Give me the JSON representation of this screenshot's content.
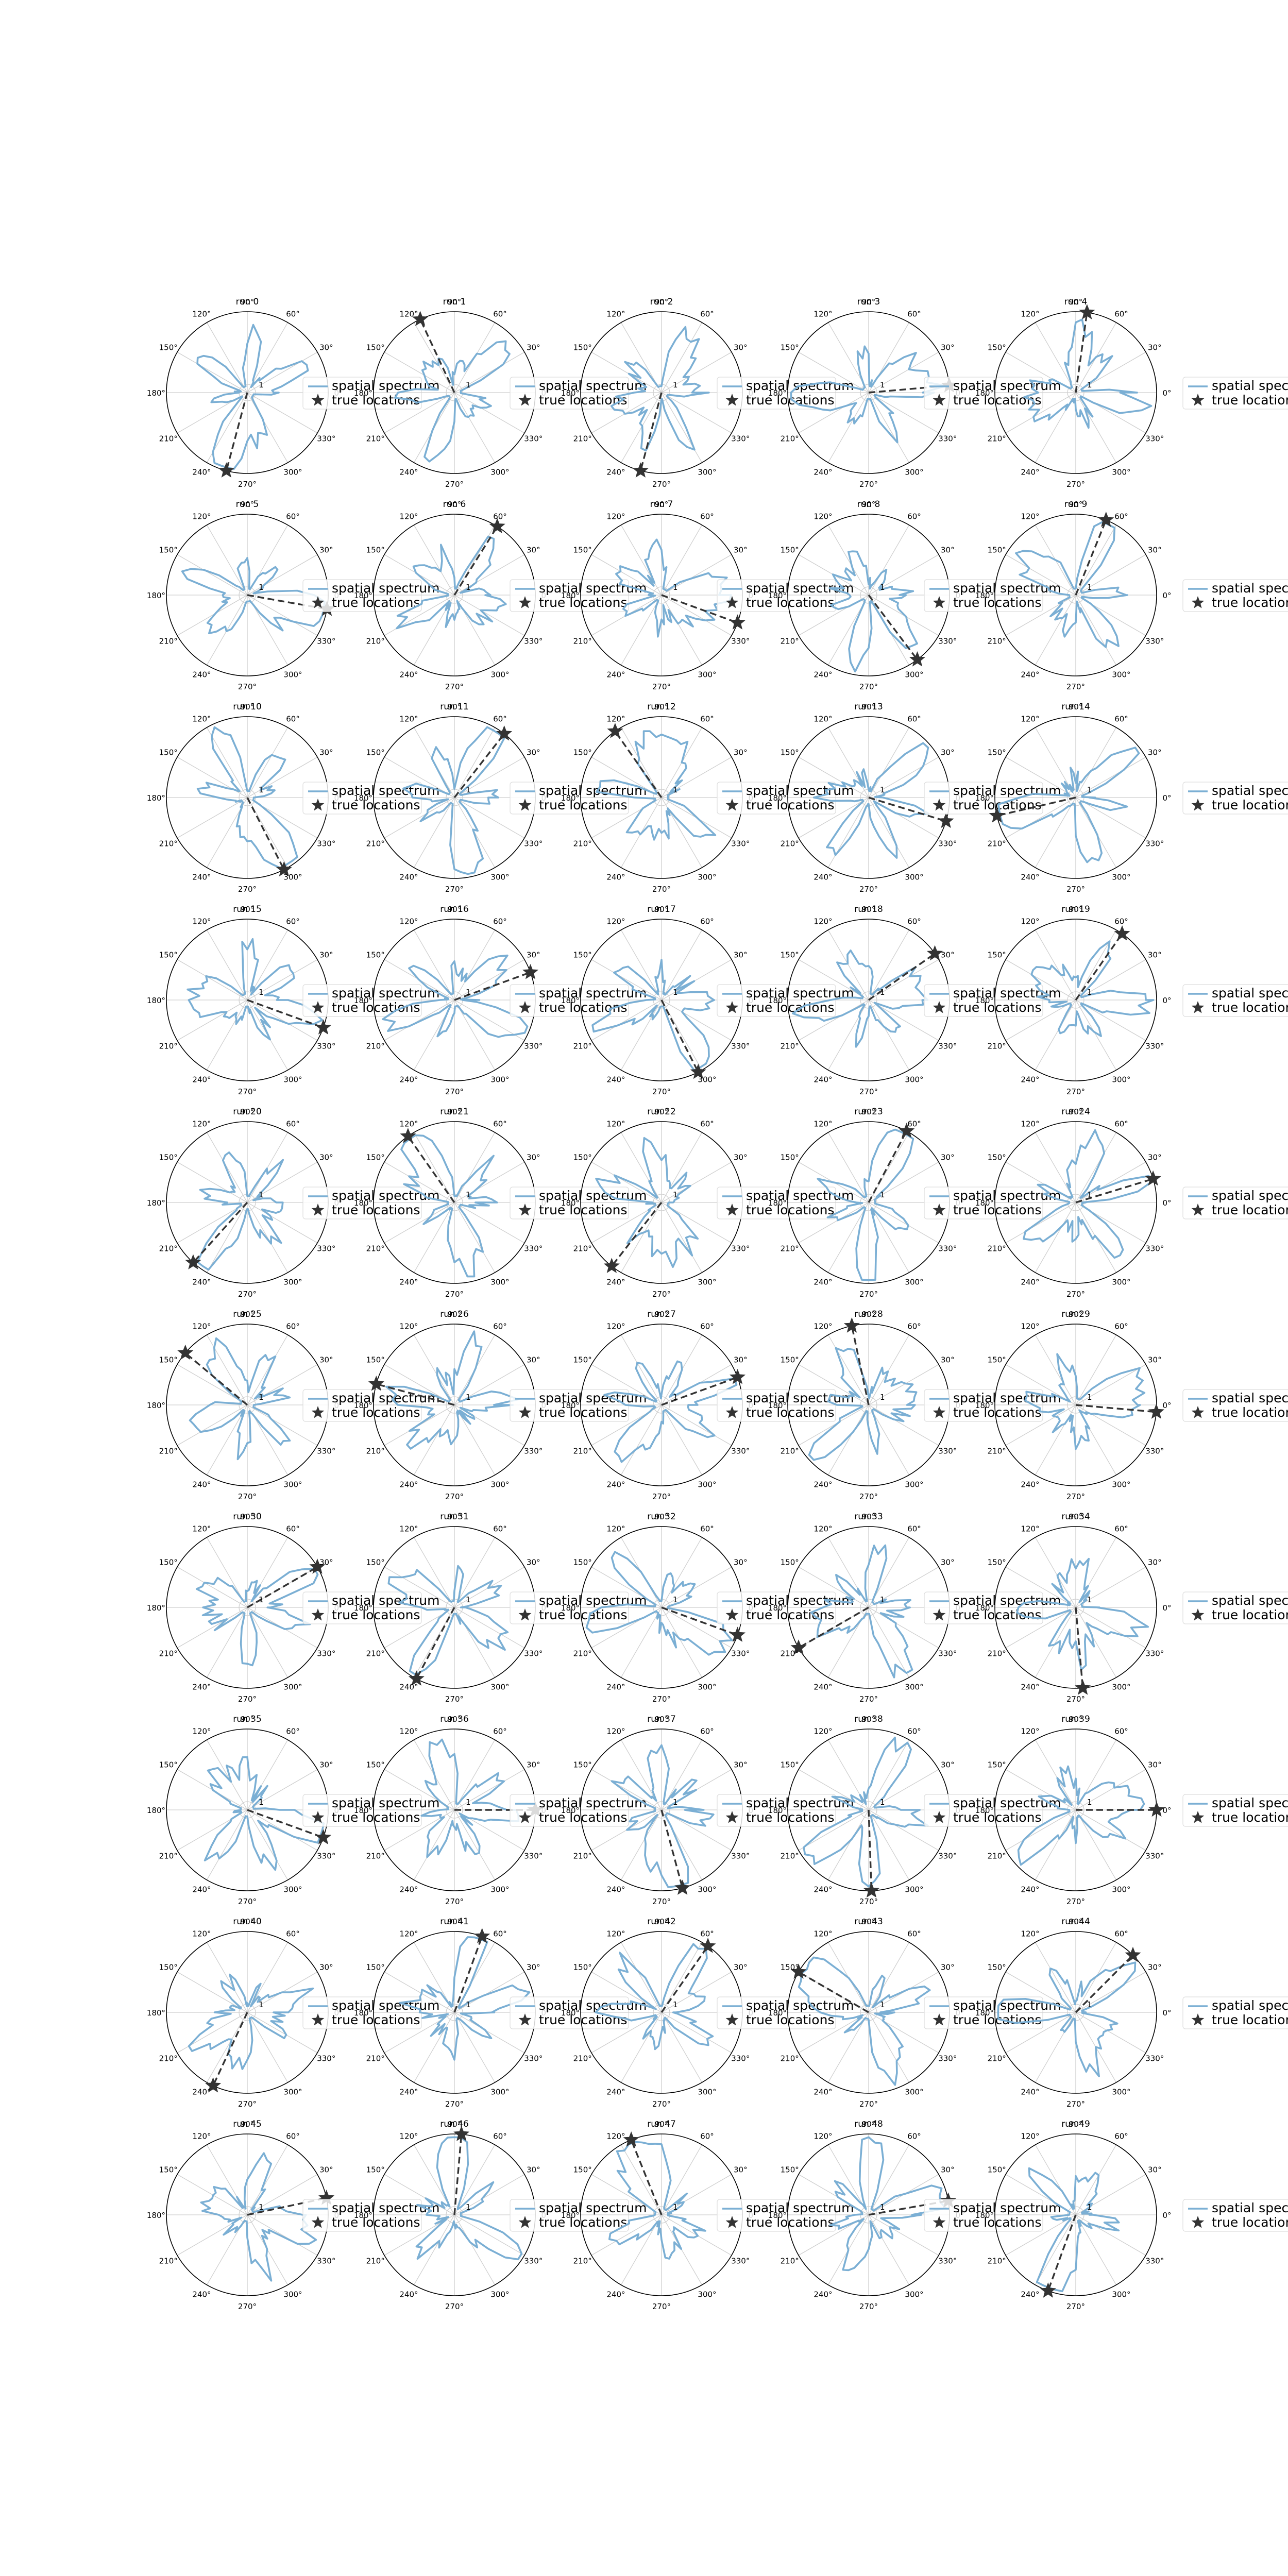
{
  "figure": {
    "angle_tick_labels": [
      "0°",
      "30°",
      "60°",
      "90°",
      "120°",
      "150°",
      "180°",
      "210°",
      "240°",
      "270°",
      "300°",
      "330°"
    ],
    "radial_tick_label": "1",
    "legend": {
      "spectrum_label": "spatial spectrum",
      "truth_label": "true locations"
    },
    "colors": {
      "spectrum": "#7bafd4",
      "truth": "#333333",
      "grid": "#cfcfcf",
      "frame": "#000000"
    }
  },
  "chart_data": {
    "type": "polar",
    "grid": true,
    "legend_placement": "right",
    "runs": [
      {
        "title": "run 0",
        "true_angle": 255
      },
      {
        "title": "run 1",
        "true_angle": 115
      },
      {
        "title": "run 2",
        "true_angle": 255
      },
      {
        "title": "run 3",
        "true_angle": 5
      },
      {
        "title": "run 4",
        "true_angle": 82
      },
      {
        "title": "run 5",
        "true_angle": 350
      },
      {
        "title": "run 6",
        "true_angle": 58
      },
      {
        "title": "run 7",
        "true_angle": 340
      },
      {
        "title": "run 8",
        "true_angle": 307
      },
      {
        "title": "run 9",
        "true_angle": 68
      },
      {
        "title": "run 10",
        "true_angle": 297
      },
      {
        "title": "run 11",
        "true_angle": 52
      },
      {
        "title": "run 12",
        "true_angle": 125
      },
      {
        "title": "run 13",
        "true_angle": 343
      },
      {
        "title": "run 14",
        "true_angle": 193
      },
      {
        "title": "run 15",
        "true_angle": 340
      },
      {
        "title": "run 16",
        "true_angle": 20
      },
      {
        "title": "run 17",
        "true_angle": 297
      },
      {
        "title": "run 18",
        "true_angle": 35
      },
      {
        "title": "run 19",
        "true_angle": 55
      },
      {
        "title": "run 20",
        "true_angle": 228
      },
      {
        "title": "run 21",
        "true_angle": 125
      },
      {
        "title": "run 22",
        "true_angle": 232
      },
      {
        "title": "run 23",
        "true_angle": 62
      },
      {
        "title": "run 24",
        "true_angle": 17
      },
      {
        "title": "run 25",
        "true_angle": 140
      },
      {
        "title": "run 26",
        "true_angle": 165
      },
      {
        "title": "run 27",
        "true_angle": 20
      },
      {
        "title": "run 28",
        "true_angle": 102
      },
      {
        "title": "run 29",
        "true_angle": 355
      },
      {
        "title": "run 30",
        "true_angle": 30
      },
      {
        "title": "run 31",
        "true_angle": 242
      },
      {
        "title": "run 32",
        "true_angle": 340
      },
      {
        "title": "run 33",
        "true_angle": 210
      },
      {
        "title": "run 34",
        "true_angle": 275
      },
      {
        "title": "run 35",
        "true_angle": 340
      },
      {
        "title": "run 36",
        "true_angle": 0
      },
      {
        "title": "run 37",
        "true_angle": 285
      },
      {
        "title": "run 38",
        "true_angle": 272
      },
      {
        "title": "run 39",
        "true_angle": 0
      },
      {
        "title": "run 40",
        "true_angle": 245
      },
      {
        "title": "run 41",
        "true_angle": 70
      },
      {
        "title": "run 42",
        "true_angle": 55
      },
      {
        "title": "run 43",
        "true_angle": 150
      },
      {
        "title": "run 44",
        "true_angle": 45
      },
      {
        "title": "run 45",
        "true_angle": 12
      },
      {
        "title": "run 46",
        "true_angle": 85
      },
      {
        "title": "run 47",
        "true_angle": 112
      },
      {
        "title": "run 48",
        "true_angle": 10
      },
      {
        "title": "run 49",
        "true_angle": 250
      }
    ]
  }
}
